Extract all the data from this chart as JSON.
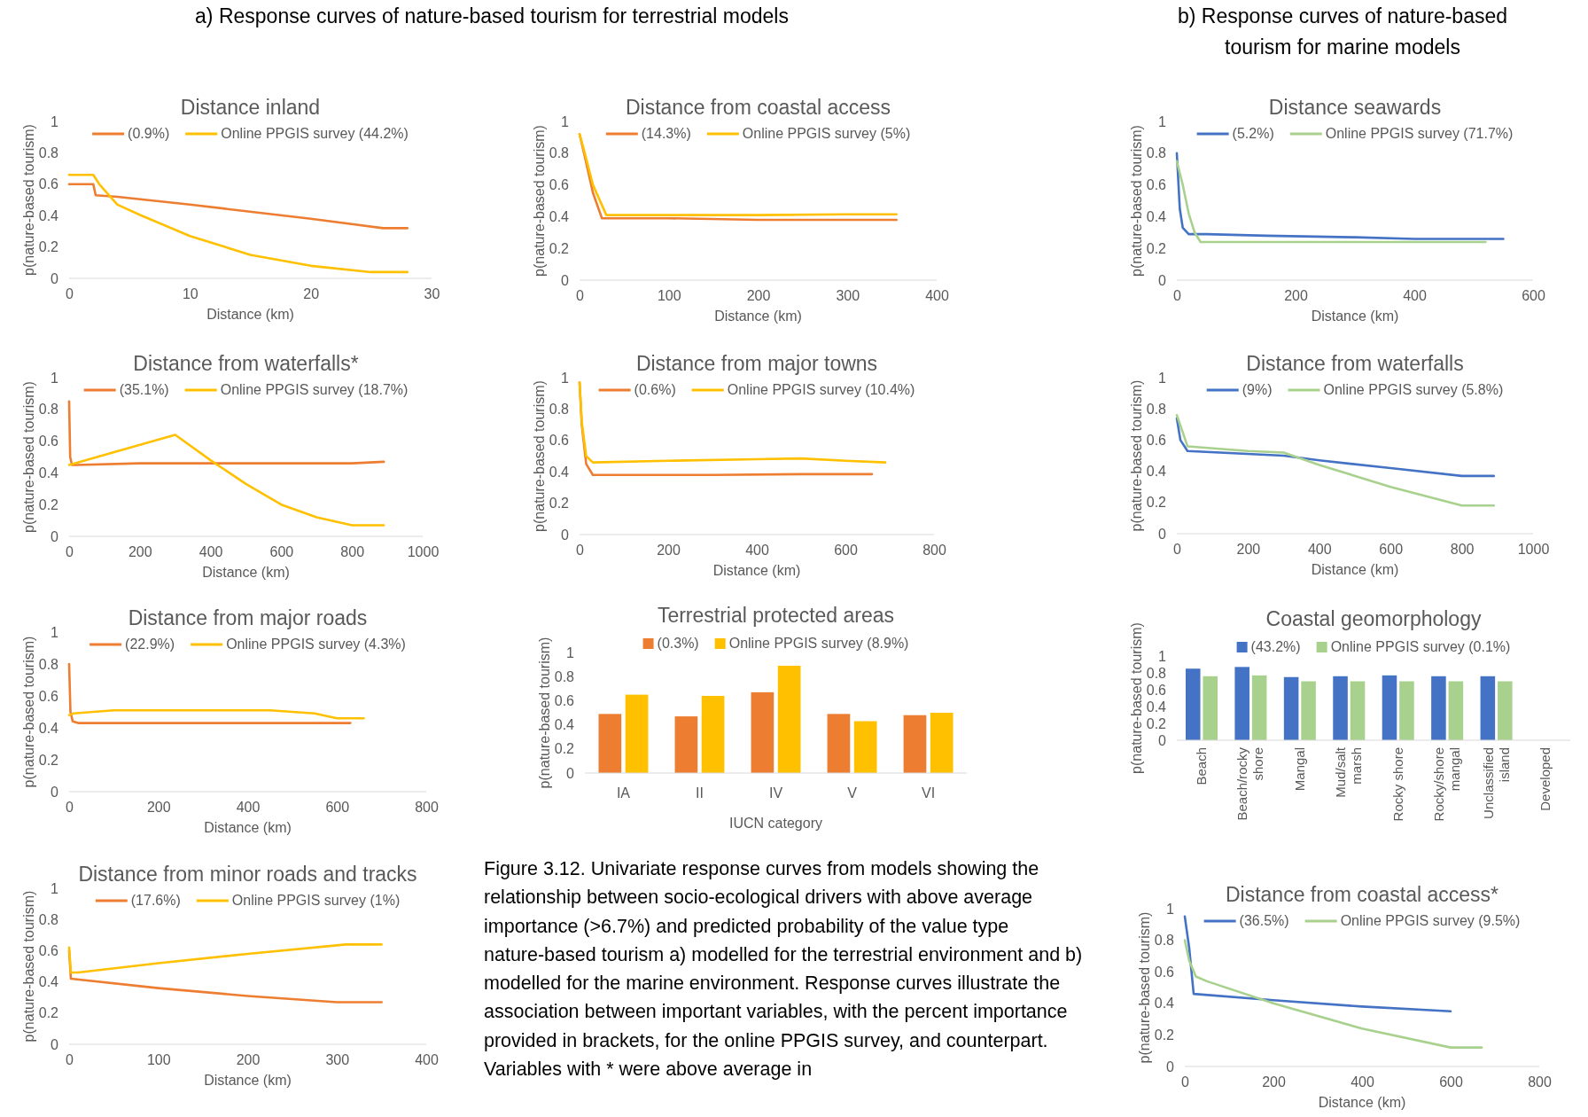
{
  "chart_data": [
    {
      "type": "other",
      "annotations": [
        "a) Response curves of nature-based tourism for terrestrial models",
        "b) Response curves of nature-based tourism for marine models",
        "Figure 3.12. Univariate response curves from models showing the relationship between socio-ecological drivers with above average importance (>6.7%) and predicted probability of the value type nature-based tourism a) modelled for the terrestrial environment and b) modelled for the marine environment. Response curves illustrate the association between important variables, with the percent importance provided in brackets, for the online PPGIS survey, and counterpart. Variables with * were above average in"
      ]
    },
    {
      "type": "line",
      "title": "Distance inland",
      "xlabel": "Distance (km)",
      "ylabel": "p(nature-based tourism)",
      "xlim": [
        0,
        30
      ],
      "xticks": [
        0,
        10,
        20,
        30
      ],
      "ylim": [
        0,
        1
      ],
      "yticks": [
        0,
        0.2,
        0.4,
        0.6,
        0.8,
        1
      ],
      "legend": "top",
      "series": [
        {
          "name": "(0.9%)",
          "color": "#ed7d31",
          "x": [
            0,
            2,
            2.2,
            4,
            10,
            20,
            26,
            28
          ],
          "values": [
            0.6,
            0.6,
            0.53,
            0.52,
            0.47,
            0.38,
            0.32,
            0.32
          ]
        },
        {
          "name": "Online PPGIS survey (44.2%)",
          "color": "#ffc000",
          "x": [
            0,
            2,
            2.5,
            4,
            6,
            10,
            15,
            20,
            25,
            28
          ],
          "values": [
            0.66,
            0.66,
            0.6,
            0.47,
            0.4,
            0.27,
            0.15,
            0.08,
            0.04,
            0.04
          ]
        }
      ]
    },
    {
      "type": "line",
      "title": "Distance from coastal access",
      "xlabel": "Distance (km)",
      "ylabel": "p(nature-based tourism)",
      "xlim": [
        0,
        400
      ],
      "xticks": [
        0,
        100,
        200,
        300,
        400
      ],
      "ylim": [
        0,
        1
      ],
      "yticks": [
        0,
        0.2,
        0.4,
        0.6,
        0.8,
        1
      ],
      "legend": "top",
      "series": [
        {
          "name": "(14.3%)",
          "color": "#ed7d31",
          "x": [
            0,
            5,
            15,
            25,
            100,
            200,
            300,
            355
          ],
          "values": [
            0.92,
            0.8,
            0.55,
            0.39,
            0.39,
            0.38,
            0.38,
            0.38
          ]
        },
        {
          "name": "Online PPGIS survey (5%)",
          "color": "#ffc000",
          "x": [
            0,
            5,
            15,
            30,
            100,
            200,
            300,
            355
          ],
          "values": [
            0.92,
            0.82,
            0.6,
            0.41,
            0.41,
            0.41,
            0.415,
            0.415
          ]
        }
      ]
    },
    {
      "type": "line",
      "title": "Distance seawards",
      "xlabel": "Distance (km)",
      "ylabel": "p(nature-based tourism)",
      "xlim": [
        0,
        600
      ],
      "xticks": [
        0,
        200,
        400,
        600
      ],
      "ylim": [
        0,
        1
      ],
      "yticks": [
        0,
        0.2,
        0.4,
        0.6,
        0.8,
        1
      ],
      "legend": "top",
      "series": [
        {
          "name": "(5.2%)",
          "color": "#4472c4",
          "x": [
            0,
            5,
            10,
            20,
            50,
            150,
            300,
            400,
            550
          ],
          "values": [
            0.8,
            0.45,
            0.33,
            0.29,
            0.29,
            0.28,
            0.27,
            0.26,
            0.26
          ]
        },
        {
          "name": "Online PPGIS survey (71.7%)",
          "color": "#a9d18e",
          "x": [
            0,
            10,
            20,
            30,
            40,
            100,
            300,
            520
          ],
          "values": [
            0.75,
            0.6,
            0.42,
            0.3,
            0.24,
            0.24,
            0.24,
            0.24
          ]
        }
      ]
    },
    {
      "type": "line",
      "title": "Distance from waterfalls*",
      "xlabel": "Distance (km)",
      "ylabel": "p(nature-based tourism)",
      "xlim": [
        0,
        1000
      ],
      "xticks": [
        0,
        200,
        400,
        600,
        800,
        1000
      ],
      "ylim": [
        0,
        1
      ],
      "yticks": [
        0,
        0.2,
        0.4,
        0.6,
        0.8,
        1
      ],
      "legend": "top",
      "series": [
        {
          "name": "(35.1%)",
          "color": "#ed7d31",
          "x": [
            0,
            3,
            8,
            20,
            200,
            400,
            600,
            800,
            890
          ],
          "values": [
            0.85,
            0.5,
            0.45,
            0.45,
            0.46,
            0.46,
            0.46,
            0.46,
            0.47
          ]
        },
        {
          "name": "Online PPGIS survey (18.7%)",
          "color": "#ffc000",
          "x": [
            0,
            300,
            400,
            500,
            600,
            700,
            800,
            890
          ],
          "values": [
            0.45,
            0.64,
            0.48,
            0.33,
            0.2,
            0.12,
            0.07,
            0.07
          ]
        }
      ]
    },
    {
      "type": "line",
      "title": "Distance from major towns",
      "xlabel": "Distance (km)",
      "ylabel": "p(nature-based tourism)",
      "xlim": [
        0,
        800
      ],
      "xticks": [
        0,
        200,
        400,
        600,
        800
      ],
      "ylim": [
        0,
        1
      ],
      "yticks": [
        0,
        0.2,
        0.4,
        0.6,
        0.8,
        1
      ],
      "legend": "top",
      "series": [
        {
          "name": "(0.6%)",
          "color": "#ed7d31",
          "x": [
            0,
            5,
            15,
            30,
            300,
            500,
            660
          ],
          "values": [
            0.97,
            0.7,
            0.45,
            0.38,
            0.38,
            0.385,
            0.385
          ]
        },
        {
          "name": "Online PPGIS survey (10.4%)",
          "color": "#ffc000",
          "x": [
            0,
            5,
            15,
            30,
            200,
            400,
            500,
            600,
            690
          ],
          "values": [
            0.97,
            0.72,
            0.5,
            0.46,
            0.47,
            0.48,
            0.485,
            0.47,
            0.46
          ]
        }
      ]
    },
    {
      "type": "line",
      "title": "Distance from waterfalls",
      "xlabel": "Distance (km)",
      "ylabel": "p(nature-based tourism)",
      "xlim": [
        0,
        1000
      ],
      "xticks": [
        0,
        200,
        400,
        600,
        800,
        1000
      ],
      "ylim": [
        0,
        1
      ],
      "yticks": [
        0,
        0.2,
        0.4,
        0.6,
        0.8,
        1
      ],
      "legend": "top",
      "series": [
        {
          "name": "(9%)",
          "color": "#4472c4",
          "x": [
            0,
            10,
            30,
            300,
            400,
            600,
            800,
            890
          ],
          "values": [
            0.74,
            0.6,
            0.53,
            0.5,
            0.47,
            0.42,
            0.37,
            0.37
          ]
        },
        {
          "name": "Online PPGIS survey (5.8%)",
          "color": "#a9d18e",
          "x": [
            0,
            30,
            200,
            300,
            400,
            600,
            800,
            890
          ],
          "values": [
            0.76,
            0.56,
            0.53,
            0.52,
            0.44,
            0.3,
            0.18,
            0.18
          ]
        }
      ]
    },
    {
      "type": "line",
      "title": "Distance from major roads",
      "xlabel": "Distance (km)",
      "ylabel": "p(nature-based tourism)",
      "xlim": [
        0,
        800
      ],
      "xticks": [
        0,
        200,
        400,
        600,
        800
      ],
      "ylim": [
        0,
        1
      ],
      "yticks": [
        0,
        0.2,
        0.4,
        0.6,
        0.8,
        1
      ],
      "legend": "top",
      "series": [
        {
          "name": "(22.9%)",
          "color": "#ed7d31",
          "x": [
            0,
            3,
            8,
            20,
            300,
            630
          ],
          "values": [
            0.8,
            0.5,
            0.44,
            0.43,
            0.43,
            0.43
          ]
        },
        {
          "name": "Online PPGIS survey (4.3%)",
          "color": "#ffc000",
          "x": [
            0,
            10,
            100,
            300,
            450,
            550,
            600,
            660
          ],
          "values": [
            0.48,
            0.49,
            0.51,
            0.51,
            0.51,
            0.49,
            0.46,
            0.46
          ]
        }
      ]
    },
    {
      "type": "bar",
      "title": "Terrestrial protected areas",
      "xlabel": "IUCN category",
      "ylabel": "p(nature-based tourism)",
      "categories": [
        "IA",
        "II",
        "IV",
        "V",
        "VI"
      ],
      "ylim": [
        0,
        1
      ],
      "yticks": [
        0,
        0.2,
        0.4,
        0.6,
        0.8,
        1
      ],
      "legend": "top",
      "series": [
        {
          "name": "(0.3%)",
          "color": "#ed7d31",
          "values": [
            0.49,
            0.47,
            0.67,
            0.49,
            0.48
          ]
        },
        {
          "name": "Online PPGIS survey (8.9%)",
          "color": "#ffc000",
          "values": [
            0.65,
            0.64,
            0.89,
            0.43,
            0.5
          ]
        }
      ]
    },
    {
      "type": "bar",
      "title": "Coastal geomorphology",
      "ylabel": "p(nature-based tourism)",
      "categories": [
        "Beach",
        "Beach/rocky shore",
        "Mangal",
        "Mud/salt marsh",
        "Rocky shore",
        "Rocky/shore mangal",
        "Unclassified island",
        "Developed"
      ],
      "ylim": [
        0,
        1
      ],
      "yticks": [
        0,
        0.2,
        0.4,
        0.6,
        0.8,
        1
      ],
      "legend": "top",
      "series": [
        {
          "name": "(43.2%)",
          "color": "#4472c4",
          "values": [
            0.85,
            0.87,
            0.75,
            0.76,
            0.77,
            0.76,
            0.76,
            null
          ]
        },
        {
          "name": "Online PPGIS survey (0.1%)",
          "color": "#a9d18e",
          "values": [
            0.76,
            0.77,
            0.7,
            0.7,
            0.7,
            0.7,
            0.7,
            null
          ]
        }
      ]
    },
    {
      "type": "line",
      "title": "Distance from minor roads and tracks",
      "xlabel": "Distance (km)",
      "ylabel": "p(nature-based tourism)",
      "xlim": [
        0,
        400
      ],
      "xticks": [
        0,
        100,
        200,
        300,
        400
      ],
      "ylim": [
        0,
        1
      ],
      "yticks": [
        0,
        0.2,
        0.4,
        0.6,
        0.8,
        1
      ],
      "legend": "top",
      "series": [
        {
          "name": "(17.6%)",
          "color": "#ed7d31",
          "x": [
            0,
            2,
            100,
            200,
            300,
            350
          ],
          "values": [
            0.6,
            0.42,
            0.36,
            0.31,
            0.27,
            0.27
          ]
        },
        {
          "name": "Online PPGIS survey (1%)",
          "color": "#ffc000",
          "x": [
            0,
            2,
            10,
            100,
            200,
            310,
            350
          ],
          "values": [
            0.62,
            0.46,
            0.46,
            0.52,
            0.58,
            0.64,
            0.64
          ]
        }
      ]
    },
    {
      "type": "line",
      "title": "Distance from coastal access*",
      "xlabel": "Distance (km)",
      "ylabel": "p(nature-based tourism)",
      "xlim": [
        0,
        800
      ],
      "xticks": [
        0,
        200,
        400,
        600,
        800
      ],
      "ylim": [
        0,
        1
      ],
      "yticks": [
        0,
        0.2,
        0.4,
        0.6,
        0.8,
        1
      ],
      "legend": "top",
      "series": [
        {
          "name": "(36.5%)",
          "color": "#4472c4",
          "x": [
            0,
            10,
            20,
            200,
            400,
            600
          ],
          "values": [
            0.95,
            0.75,
            0.46,
            0.42,
            0.38,
            0.35
          ]
        },
        {
          "name": "Online PPGIS survey (9.5%)",
          "color": "#a9d18e",
          "x": [
            0,
            10,
            25,
            50,
            200,
            400,
            600,
            670
          ],
          "values": [
            0.8,
            0.67,
            0.57,
            0.54,
            0.4,
            0.24,
            0.12,
            0.12
          ]
        }
      ]
    }
  ]
}
